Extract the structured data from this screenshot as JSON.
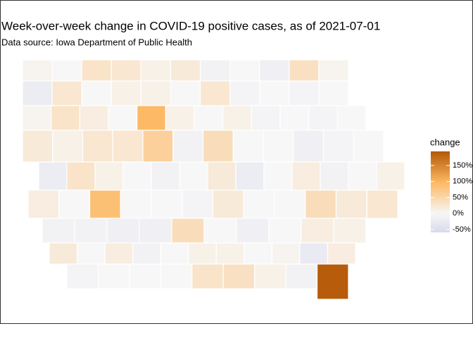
{
  "chart_data": {
    "type": "choropleth",
    "title": "Week-over-week change in COVID-19 positive cases, as of 2021-07-01",
    "subtitle": "Data source: Iowa Department of Public Health",
    "legend_title": "change",
    "colors": [
      "#d8d9eb",
      "#f7f7f7",
      "#fdb863",
      "#b35806"
    ],
    "clim": [
      -59,
      194
    ],
    "cticks": [
      {
        "value": 150,
        "label": "150%"
      },
      {
        "value": 100,
        "label": "100%"
      },
      {
        "value": 50,
        "label": "50%"
      },
      {
        "value": 0,
        "label": "0%"
      },
      {
        "value": -50,
        "label": "-50%"
      }
    ],
    "values": [
      [
        5,
        0,
        30,
        25,
        10,
        20,
        -10,
        0,
        -15,
        35,
        5
      ],
      [
        -20,
        25,
        0,
        10,
        10,
        0,
        25,
        -5,
        0,
        -5,
        0
      ],
      [
        5,
        30,
        15,
        0,
        95,
        10,
        0,
        10,
        -5,
        0,
        -5,
        0
      ],
      [
        20,
        10,
        25,
        25,
        60,
        -10,
        40,
        0,
        0,
        -15,
        -5,
        0
      ],
      [
        -20,
        30,
        10,
        0,
        -10,
        0,
        20,
        -20,
        0,
        15,
        -10,
        0,
        10
      ],
      [
        15,
        0,
        85,
        0,
        0,
        -5,
        20,
        0,
        0,
        40,
        20,
        25
      ],
      [
        -10,
        -10,
        -15,
        -15,
        40,
        0,
        -15,
        0,
        15,
        10
      ],
      [
        20,
        0,
        15,
        -10,
        0,
        10,
        10,
        0,
        5,
        -25,
        15
      ],
      [
        -5,
        0,
        0,
        0,
        30,
        35,
        10,
        -10,
        190
      ]
    ]
  }
}
